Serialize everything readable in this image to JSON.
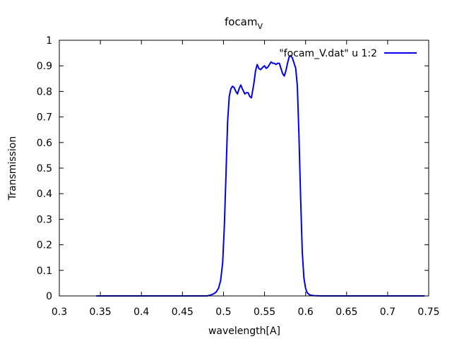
{
  "chart_data": {
    "type": "line",
    "title_main": "focam",
    "title_sub": "V",
    "xlabel": "wavelength[A]",
    "ylabel": "Transmission",
    "xlim": [
      0.3,
      0.75
    ],
    "ylim": [
      0,
      1
    ],
    "xticks": [
      "0.3",
      "0.35",
      "0.4",
      "0.45",
      "0.5",
      "0.55",
      "0.6",
      "0.65",
      "0.7",
      "0.75"
    ],
    "yticks": [
      "0",
      "0.1",
      "0.2",
      "0.3",
      "0.4",
      "0.5",
      "0.6",
      "0.7",
      "0.8",
      "0.9",
      "1"
    ],
    "grid": false,
    "legend_position": "top-right",
    "series": [
      {
        "name": "\"focam_V.dat\" u 1:2",
        "color": "#0000ee",
        "x": [
          0.345,
          0.48,
          0.484,
          0.488,
          0.491,
          0.494,
          0.4965,
          0.499,
          0.501,
          0.503,
          0.505,
          0.507,
          0.509,
          0.511,
          0.513,
          0.515,
          0.517,
          0.519,
          0.521,
          0.523,
          0.526,
          0.528,
          0.53,
          0.532,
          0.534,
          0.537,
          0.539,
          0.541,
          0.543,
          0.545,
          0.548,
          0.55,
          0.552,
          0.554,
          0.556,
          0.558,
          0.56,
          0.562,
          0.564,
          0.566,
          0.568,
          0.57,
          0.572,
          0.574,
          0.576,
          0.578,
          0.58,
          0.582,
          0.584,
          0.586,
          0.588,
          0.59,
          0.592,
          0.594,
          0.596,
          0.598,
          0.6,
          0.602,
          0.605,
          0.61,
          0.62,
          0.745
        ],
        "y": [
          0.0,
          0.0,
          0.003,
          0.008,
          0.015,
          0.03,
          0.06,
          0.13,
          0.27,
          0.47,
          0.68,
          0.78,
          0.81,
          0.82,
          0.815,
          0.8,
          0.79,
          0.81,
          0.825,
          0.81,
          0.79,
          0.795,
          0.795,
          0.78,
          0.775,
          0.83,
          0.88,
          0.905,
          0.89,
          0.885,
          0.895,
          0.9,
          0.89,
          0.895,
          0.905,
          0.915,
          0.91,
          0.91,
          0.905,
          0.91,
          0.91,
          0.89,
          0.87,
          0.86,
          0.88,
          0.91,
          0.935,
          0.94,
          0.93,
          0.91,
          0.89,
          0.82,
          0.62,
          0.38,
          0.17,
          0.07,
          0.03,
          0.012,
          0.004,
          0.001,
          0.0,
          0.0
        ]
      }
    ]
  }
}
